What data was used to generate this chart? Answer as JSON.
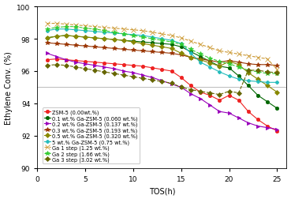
{
  "title": "",
  "xlabel": "TOS(h)",
  "ylabel": "Ethylene Conv. (%)",
  "ylim": [
    90,
    100
  ],
  "xlim": [
    0,
    26
  ],
  "yticks": [
    90,
    92,
    94,
    96,
    98,
    100
  ],
  "xticks": [
    0,
    5,
    10,
    15,
    20,
    25
  ],
  "series": [
    {
      "label": "ZSM-5 (0.00wt.%)",
      "color": "#EE2222",
      "marker": "o",
      "markersize": 3,
      "linestyle": "-",
      "x": [
        1,
        2,
        3,
        4,
        5,
        6,
        7,
        8,
        9,
        10,
        11,
        12,
        13,
        14,
        15,
        16,
        17,
        18,
        19,
        20,
        21,
        22,
        23,
        24,
        25
      ],
      "y": [
        96.7,
        96.75,
        96.7,
        96.65,
        96.6,
        96.55,
        96.5,
        96.45,
        96.4,
        96.35,
        96.3,
        96.2,
        96.1,
        96.0,
        95.6,
        95.1,
        94.7,
        94.5,
        94.2,
        94.5,
        94.2,
        93.5,
        93.0,
        92.6,
        92.3
      ]
    },
    {
      "label": "0.1 wt.% Ga-ZSM-5 (0.060 wt.%)",
      "color": "#006600",
      "marker": "o",
      "markersize": 3,
      "linestyle": "-",
      "x": [
        1,
        2,
        3,
        4,
        5,
        6,
        7,
        8,
        9,
        10,
        11,
        12,
        13,
        14,
        15,
        16,
        17,
        18,
        19,
        20,
        21,
        22,
        23,
        24,
        25
      ],
      "y": [
        98.05,
        98.15,
        98.2,
        98.15,
        98.1,
        98.05,
        98.0,
        97.95,
        97.9,
        97.85,
        97.8,
        97.75,
        97.7,
        97.65,
        97.5,
        97.2,
        96.9,
        96.6,
        96.3,
        96.2,
        95.7,
        95.1,
        94.5,
        94.1,
        93.7
      ]
    },
    {
      "label": "0.2 wt.% Ga-ZSM-5 (0.137 wt.%)",
      "color": "#9900BB",
      "marker": ">",
      "markersize": 3,
      "linestyle": "-",
      "x": [
        1,
        2,
        3,
        4,
        5,
        6,
        7,
        8,
        9,
        10,
        11,
        12,
        13,
        14,
        15,
        16,
        17,
        18,
        19,
        20,
        21,
        22,
        23,
        24,
        25
      ],
      "y": [
        97.1,
        96.9,
        96.7,
        96.55,
        96.45,
        96.35,
        96.25,
        96.15,
        96.0,
        95.9,
        95.75,
        95.6,
        95.4,
        95.2,
        95.0,
        94.6,
        94.3,
        93.9,
        93.5,
        93.4,
        93.1,
        92.8,
        92.6,
        92.5,
        92.4
      ]
    },
    {
      "label": "0.3 wt.% Ga-ZSM-5 (0.193 wt.%)",
      "color": "#993300",
      "marker": "*",
      "markersize": 4,
      "linestyle": "-",
      "x": [
        1,
        2,
        3,
        4,
        5,
        6,
        7,
        8,
        9,
        10,
        11,
        12,
        13,
        14,
        15,
        16,
        17,
        18,
        19,
        20,
        21,
        22,
        23,
        24,
        25
      ],
      "y": [
        97.75,
        97.7,
        97.65,
        97.6,
        97.55,
        97.5,
        97.45,
        97.4,
        97.35,
        97.3,
        97.25,
        97.2,
        97.15,
        97.1,
        97.0,
        96.85,
        96.75,
        96.65,
        96.55,
        96.65,
        96.55,
        96.45,
        96.4,
        96.4,
        96.35
      ]
    },
    {
      "label": "0.5 wt.% Ga-ZSM-5 (0.320 wt.%)",
      "color": "#888800",
      "marker": "D",
      "markersize": 3,
      "linestyle": "-",
      "x": [
        1,
        2,
        3,
        4,
        5,
        6,
        7,
        8,
        9,
        10,
        11,
        12,
        13,
        14,
        15,
        16,
        17,
        18,
        19,
        20,
        21,
        22,
        23,
        24,
        25
      ],
      "y": [
        98.05,
        98.15,
        98.2,
        98.15,
        98.1,
        98.05,
        98.0,
        97.95,
        97.9,
        97.8,
        97.7,
        97.6,
        97.5,
        97.4,
        97.1,
        96.85,
        96.7,
        96.5,
        96.3,
        96.6,
        96.4,
        95.9,
        95.5,
        95.1,
        94.7
      ]
    },
    {
      "label": "5 wt.% Ga-ZSM-5 (0.75 wt.%)",
      "color": "#22BBBB",
      "marker": "P",
      "markersize": 3,
      "linestyle": "-",
      "x": [
        1,
        2,
        3,
        4,
        5,
        6,
        7,
        8,
        9,
        10,
        11,
        12,
        13,
        14,
        15,
        16,
        17,
        18,
        19,
        20,
        21,
        22,
        23,
        24,
        25
      ],
      "y": [
        98.5,
        98.6,
        98.6,
        98.55,
        98.5,
        98.45,
        98.4,
        98.35,
        98.3,
        98.25,
        98.2,
        98.1,
        98.0,
        97.9,
        97.7,
        97.1,
        96.55,
        96.25,
        95.95,
        95.7,
        95.5,
        95.4,
        95.35,
        95.3,
        95.3
      ]
    },
    {
      "label": "Ga 1 step (1.25 wt.%)",
      "color": "#CC9933",
      "marker": "x",
      "markersize": 4,
      "linestyle": "--",
      "x": [
        1,
        2,
        3,
        4,
        5,
        6,
        7,
        8,
        9,
        10,
        11,
        12,
        13,
        14,
        15,
        16,
        17,
        18,
        19,
        20,
        21,
        22,
        23,
        24,
        25
      ],
      "y": [
        98.95,
        98.95,
        98.9,
        98.85,
        98.8,
        98.75,
        98.7,
        98.65,
        98.6,
        98.55,
        98.5,
        98.4,
        98.3,
        98.2,
        98.05,
        97.85,
        97.65,
        97.45,
        97.25,
        97.15,
        97.05,
        96.95,
        96.85,
        96.75,
        96.1
      ]
    },
    {
      "label": "Ga 2 step (1.66 wt.%)",
      "color": "#33CC33",
      "marker": "*",
      "markersize": 4,
      "linestyle": "--",
      "x": [
        1,
        2,
        3,
        4,
        5,
        6,
        7,
        8,
        9,
        10,
        11,
        12,
        13,
        14,
        15,
        16,
        17,
        18,
        19,
        20,
        21,
        22,
        23,
        24,
        25
      ],
      "y": [
        98.6,
        98.7,
        98.75,
        98.75,
        98.65,
        98.6,
        98.5,
        98.4,
        98.3,
        98.2,
        98.1,
        98.0,
        97.9,
        97.8,
        97.65,
        97.35,
        97.05,
        96.8,
        96.6,
        96.45,
        96.25,
        96.05,
        95.95,
        95.85,
        95.85
      ]
    },
    {
      "label": "Ga 3 step (3.02 wt.%)",
      "color": "#666600",
      "marker": "D",
      "markersize": 3,
      "linestyle": "--",
      "x": [
        1,
        2,
        3,
        4,
        5,
        6,
        7,
        8,
        9,
        10,
        11,
        12,
        13,
        14,
        15,
        16,
        17,
        18,
        19,
        20,
        21,
        22,
        23,
        24,
        25
      ],
      "y": [
        96.35,
        96.4,
        96.35,
        96.25,
        96.15,
        96.05,
        95.95,
        95.85,
        95.75,
        95.65,
        95.55,
        95.45,
        95.35,
        95.25,
        95.0,
        94.85,
        94.75,
        94.65,
        94.55,
        94.75,
        94.65,
        96.05,
        96.05,
        95.95,
        95.9
      ]
    }
  ],
  "legend_fontsize": 4.8,
  "axis_fontsize": 7,
  "tick_fontsize": 6.5,
  "linewidth": 0.8,
  "figsize": [
    3.69,
    2.53
  ],
  "dpi": 100,
  "hline_y": 95.0,
  "hline_color": "#BBBBBB",
  "hline_lw": 0.7
}
